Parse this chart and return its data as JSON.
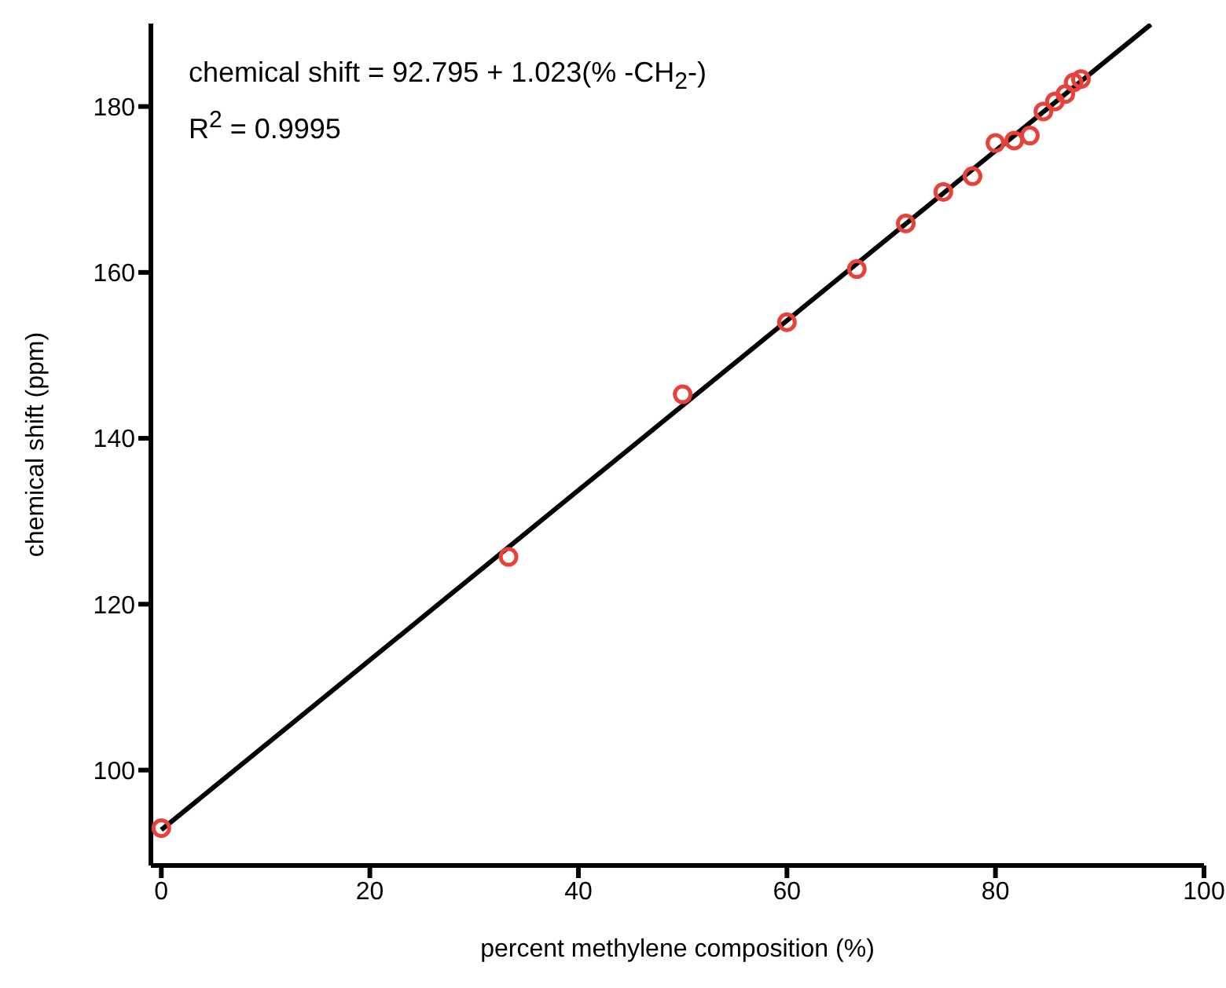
{
  "chart_data": {
    "type": "scatter",
    "xlabel": "percent methylene composition (%)",
    "ylabel": "chemical shift (ppm)",
    "annotations": [
      "chemical shift = 92.795 + 1.023(% -CH$_{2}$-)",
      "R$^{2}$ = 0.9995"
    ],
    "xlim": [
      -1,
      100
    ],
    "xticks": [
      0,
      20,
      40,
      60,
      80,
      100
    ],
    "ylim": [
      88.5,
      190
    ],
    "yticks": [
      100,
      120,
      140,
      160,
      180
    ],
    "grid": false,
    "marker": "circle",
    "series": [
      {
        "type": "line",
        "color": "#000000",
        "x": [
          0,
          94.9
        ],
        "values": [
          92.8,
          189.9
        ],
        "marker": "none",
        "line_style": "solid"
      },
      {
        "color": "#e8413a",
        "x": [
          0,
          33.3,
          50,
          60,
          66.7,
          71.4,
          75,
          77.8,
          80,
          81.8,
          83.3,
          84.6,
          85.7,
          86.7,
          87.5,
          88.2
        ],
        "values": [
          93.0,
          125.7,
          145.3,
          154.0,
          160.4,
          165.9,
          169.7,
          171.6,
          175.6,
          175.9,
          176.5,
          179.4,
          180.6,
          181.5,
          182.9,
          183.3
        ]
      }
    ]
  }
}
